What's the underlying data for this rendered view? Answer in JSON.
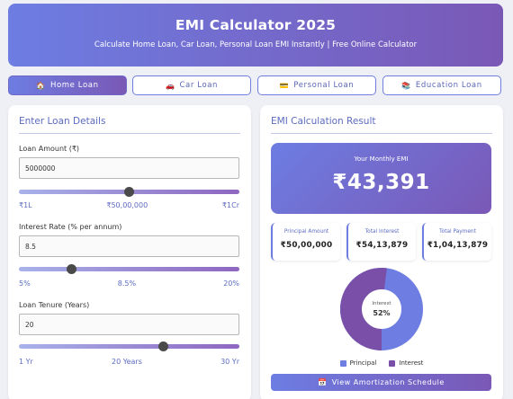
{
  "header": {
    "title": "EMI Calculator 2025",
    "subtitle": "Calculate Home Loan, Car Loan, Personal Loan EMI Instantly | Free Online Calculator"
  },
  "tabs": [
    {
      "icon": "🏠",
      "icon_name": "home-icon",
      "label": "Home Loan",
      "active": true
    },
    {
      "icon": "🚗",
      "icon_name": "car-icon",
      "label": "Car Loan",
      "active": false
    },
    {
      "icon": "💳",
      "icon_name": "credit-card-icon",
      "label": "Personal Loan",
      "active": false
    },
    {
      "icon": "📚",
      "icon_name": "books-icon",
      "label": "Education Loan",
      "active": false
    }
  ],
  "form": {
    "title": "Enter Loan Details",
    "loan_amount": {
      "label": "Loan Amount (₹)",
      "value": "5000000",
      "slider_fraction": 0.5,
      "min_label": "₹1L",
      "mid_label": "₹50,00,000",
      "max_label": "₹1Cr"
    },
    "interest_rate": {
      "label": "Interest Rate (% per annum)",
      "value": "8.5",
      "slider_fraction": 0.24,
      "min_label": "5%",
      "mid_label": "8.5%",
      "max_label": "20%"
    },
    "tenure": {
      "label": "Loan Tenure (Years)",
      "value": "20",
      "slider_fraction": 0.655,
      "min_label": "1 Yr",
      "mid_label": "20 Years",
      "max_label": "30 Yr"
    }
  },
  "result": {
    "title": "EMI Calculation Result",
    "emi_label": "Your Monthly EMI",
    "emi_value": "₹43,391",
    "stats": [
      {
        "label": "Principal Amount",
        "value": "₹50,00,000"
      },
      {
        "label": "Total Interest",
        "value": "₹54,13,879"
      },
      {
        "label": "Total Payment",
        "value": "₹1,04,13,879"
      }
    ],
    "donut": {
      "center_label": "Interest",
      "center_value": "52%",
      "interest_fraction": 0.52
    },
    "legend": [
      {
        "label": "Principal",
        "color": "#6d7de2"
      },
      {
        "label": "Interest",
        "color": "#7a4fa8"
      }
    ],
    "amortization_button": {
      "icon": "📅",
      "label": "View Amortization Schedule"
    }
  },
  "colors": {
    "principal": "#6d7de2",
    "interest": "#7a4fa8",
    "accent": "#5c6bc0"
  }
}
